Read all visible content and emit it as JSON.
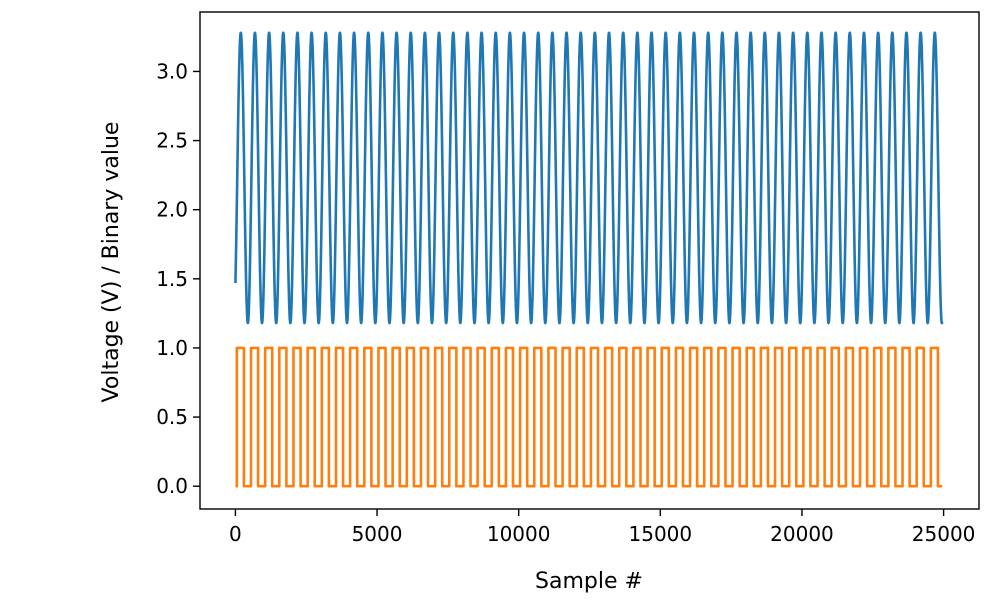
{
  "chart_data": {
    "type": "line",
    "title": "",
    "xlabel": "Sample #",
    "ylabel": "Voltage (V) / Binary value",
    "xlim": [
      -1250,
      26250
    ],
    "ylim": [
      -0.165,
      3.43
    ],
    "x_ticks": [
      0,
      5000,
      10000,
      15000,
      20000,
      25000
    ],
    "x_tick_labels": [
      "0",
      "5000",
      "10000",
      "15000",
      "20000",
      "25000"
    ],
    "y_ticks": [
      0.0,
      0.5,
      1.0,
      1.5,
      2.0,
      2.5,
      3.0
    ],
    "y_tick_labels": [
      "0.0",
      "0.5",
      "1.0",
      "1.5",
      "2.0",
      "2.5",
      "3.0"
    ],
    "grid": false,
    "legend": "none",
    "series": [
      {
        "kind": "sine",
        "color": "#1f77b4",
        "x_start": 0,
        "x_end": 24950,
        "period": 500,
        "mean": 2.23,
        "amplitude": 1.05,
        "start_value": 1.47,
        "min": 1.18,
        "max": 3.28
      },
      {
        "kind": "square",
        "color": "#ff7f0e",
        "x_start": 0,
        "x_end": 24950,
        "period": 500,
        "low": 0,
        "high": 1
      }
    ]
  }
}
